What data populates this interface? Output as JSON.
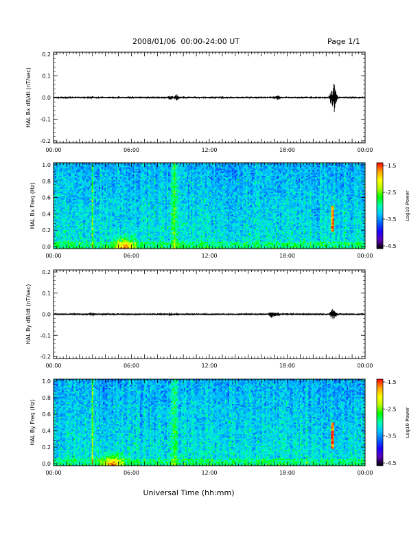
{
  "header": {
    "title": "2008/01/06  00:00-24:00 UT",
    "page": "Page 1/1"
  },
  "colorscale": {
    "stops": [
      "#000000",
      "#5a00b4",
      "#1e00ff",
      "#0064ff",
      "#00c8ff",
      "#00ffb4",
      "#00ff00",
      "#b4ff00",
      "#ffff00",
      "#ffa000",
      "#ff0000"
    ]
  },
  "chart_data": [
    {
      "type": "line",
      "ylabel": "HAL Bx dB/dt (nT/sec)",
      "xlim": [
        "00:00",
        "24:00"
      ],
      "ylim": [
        -0.2,
        0.2
      ],
      "x_tick_labels": [
        "00:00",
        "06:00",
        "12:00",
        "18:00",
        "00:00"
      ],
      "y_tick_labels": [
        "0.2",
        "0.1",
        "0.0",
        "-0.1",
        "-0.2"
      ],
      "series": [
        {
          "x": [
            0,
            1,
            2,
            2.9,
            3.0,
            4,
            5,
            6,
            7,
            8,
            9.0,
            9.5,
            10,
            11,
            12,
            13,
            14,
            15,
            16,
            17.0,
            17.3,
            18,
            19,
            20,
            21,
            21.5,
            21.6,
            22,
            23,
            24
          ],
          "y": [
            0.0,
            0.002,
            -0.002,
            0.005,
            -0.005,
            0.003,
            0.005,
            -0.005,
            0.003,
            0.004,
            0.01,
            -0.012,
            0.005,
            0.004,
            0.003,
            0.006,
            -0.004,
            0.003,
            0.004,
            0.006,
            -0.01,
            0.005,
            0.004,
            0.003,
            0.004,
            0.04,
            -0.06,
            0.004,
            0.002,
            0.0
          ]
        }
      ]
    },
    {
      "type": "heatmap",
      "ylabel": "HAL Bx Freq (Hz)",
      "xlim": [
        "00:00",
        "24:00"
      ],
      "ylim": [
        0.0,
        1.0
      ],
      "x_tick_labels": [
        "00:00",
        "06:00",
        "12:00",
        "18:00",
        "00:00"
      ],
      "y_tick_labels": [
        "1.0",
        "0.8",
        "0.6",
        "0.4",
        "0.2",
        "0.0"
      ],
      "colorbar": {
        "label": "Log10 Power",
        "range": [
          -4.5,
          -1.5
        ],
        "tick_labels": [
          "-1.5",
          "-2.5",
          "-3.5",
          "-4.5"
        ]
      },
      "features": [
        {
          "time_h": 3.0,
          "kind": "vertical streak"
        },
        {
          "time_h": 5.5,
          "kind": "low-frequency enhancement"
        },
        {
          "time_h": 9.3,
          "kind": "broadband enhancement"
        },
        {
          "time_h": 21.5,
          "kind": "Pc1 band 0.2-0.5 Hz"
        }
      ]
    },
    {
      "type": "line",
      "ylabel": "HAL By dB/dt (nT/sec)",
      "xlim": [
        "00:00",
        "24:00"
      ],
      "ylim": [
        -0.2,
        0.2
      ],
      "x_tick_labels": [
        "00:00",
        "06:00",
        "12:00",
        "18:00",
        "00:00"
      ],
      "y_tick_labels": [
        "0.2",
        "0.1",
        "0.0",
        "-0.1",
        "-0.2"
      ],
      "series": [
        {
          "x": [
            0,
            1,
            2,
            2.9,
            3.0,
            4,
            5,
            6,
            7,
            8,
            9.0,
            9.5,
            10,
            11,
            12,
            13,
            14,
            15,
            16,
            16.8,
            17.0,
            17.3,
            18,
            19,
            20,
            21,
            21.5,
            21.6,
            22,
            23,
            24
          ],
          "y": [
            0.0,
            0.002,
            -0.002,
            0.008,
            -0.008,
            0.003,
            0.004,
            -0.004,
            0.003,
            0.004,
            0.008,
            -0.006,
            0.004,
            0.004,
            0.003,
            0.004,
            -0.004,
            0.003,
            0.004,
            0.014,
            -0.01,
            0.008,
            0.005,
            0.004,
            0.003,
            0.004,
            0.02,
            -0.02,
            0.004,
            0.002,
            0.0
          ]
        }
      ]
    },
    {
      "type": "heatmap",
      "ylabel": "HAL By Freq (Hz)",
      "xlabel": "Universal Time (hh:mm)",
      "xlim": [
        "00:00",
        "24:00"
      ],
      "ylim": [
        0.0,
        1.0
      ],
      "x_tick_labels": [
        "00:00",
        "06:00",
        "12:00",
        "18:00",
        "00:00"
      ],
      "y_tick_labels": [
        "1.0",
        "0.8",
        "0.6",
        "0.4",
        "0.2",
        "0.0"
      ],
      "colorbar": {
        "label": "Log10 Power",
        "range": [
          -4.5,
          -1.5
        ],
        "tick_labels": [
          "-1.5",
          "-2.5",
          "-3.5",
          "-4.5"
        ]
      },
      "features": [
        {
          "time_h": 3.0,
          "kind": "vertical streak"
        },
        {
          "time_h": 4.5,
          "kind": "low-frequency enhancement"
        },
        {
          "time_h": 9.3,
          "kind": "broadband enhancement"
        },
        {
          "time_h": 21.5,
          "kind": "Pc1 band 0.2-0.5 Hz"
        }
      ]
    }
  ]
}
